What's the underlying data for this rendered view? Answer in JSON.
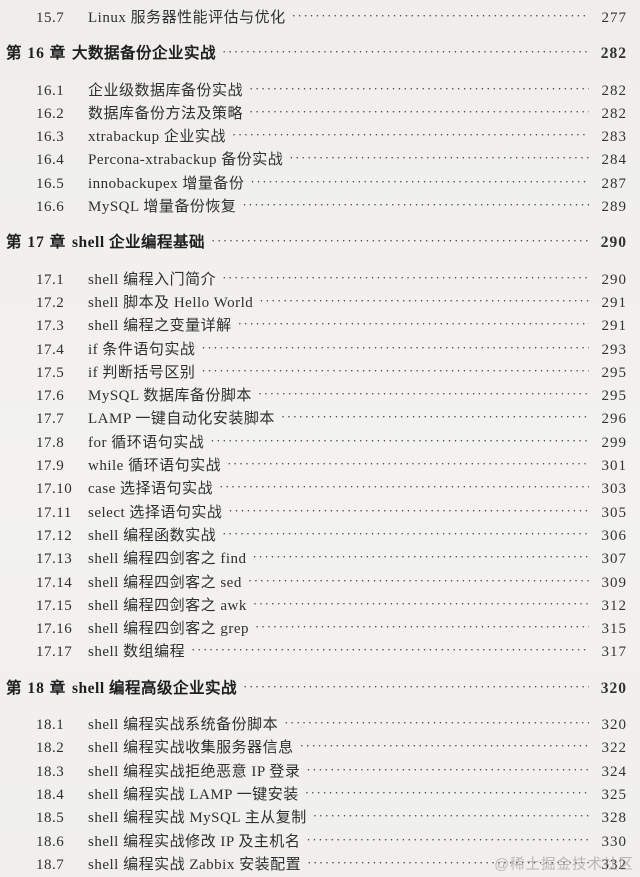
{
  "page": {
    "watermark": "@稀土掘金技术社区"
  },
  "toc": {
    "entries": [
      {
        "type": "section",
        "num": "15.7",
        "title": "Linux 服务器性能评估与优化",
        "page": "277"
      },
      {
        "type": "chapter",
        "num": "第 16 章",
        "title": "大数据备份企业实战",
        "page": "282"
      },
      {
        "type": "section",
        "num": "16.1",
        "title": "企业级数据库备份实战",
        "page": "282"
      },
      {
        "type": "section",
        "num": "16.2",
        "title": "数据库备份方法及策略",
        "page": "282"
      },
      {
        "type": "section",
        "num": "16.3",
        "title": "xtrabackup 企业实战",
        "page": "283"
      },
      {
        "type": "section",
        "num": "16.4",
        "title": "Percona-xtrabackup 备份实战",
        "page": "284"
      },
      {
        "type": "section",
        "num": "16.5",
        "title": "innobackupex 增量备份",
        "page": "287"
      },
      {
        "type": "section",
        "num": "16.6",
        "title": "MySQL 增量备份恢复",
        "page": "289"
      },
      {
        "type": "chapter",
        "num": "第 17 章",
        "title": "shell 企业编程基础",
        "page": "290"
      },
      {
        "type": "section",
        "num": "17.1",
        "title": "shell 编程入门简介",
        "page": "290"
      },
      {
        "type": "section",
        "num": "17.2",
        "title": "shell 脚本及 Hello World",
        "page": "291"
      },
      {
        "type": "section",
        "num": "17.3",
        "title": "shell 编程之变量详解",
        "page": "291"
      },
      {
        "type": "section",
        "num": "17.4",
        "title": "if 条件语句实战",
        "page": "293"
      },
      {
        "type": "section",
        "num": "17.5",
        "title": "if 判断括号区别",
        "page": "295"
      },
      {
        "type": "section",
        "num": "17.6",
        "title": "MySQL 数据库备份脚本",
        "page": "295"
      },
      {
        "type": "section",
        "num": "17.7",
        "title": "LAMP 一键自动化安装脚本",
        "page": "296"
      },
      {
        "type": "section",
        "num": "17.8",
        "title": "for 循环语句实战",
        "page": "299"
      },
      {
        "type": "section",
        "num": "17.9",
        "title": "while 循环语句实战",
        "page": "301"
      },
      {
        "type": "section",
        "num": "17.10",
        "title": "case 选择语句实战",
        "page": "303"
      },
      {
        "type": "section",
        "num": "17.11",
        "title": "select 选择语句实战",
        "page": "305"
      },
      {
        "type": "section",
        "num": "17.12",
        "title": "shell 编程函数实战",
        "page": "306"
      },
      {
        "type": "section",
        "num": "17.13",
        "title": "shell 编程四剑客之 find",
        "page": "307"
      },
      {
        "type": "section",
        "num": "17.14",
        "title": "shell 编程四剑客之 sed",
        "page": "309"
      },
      {
        "type": "section",
        "num": "17.15",
        "title": "shell 编程四剑客之 awk",
        "page": "312"
      },
      {
        "type": "section",
        "num": "17.16",
        "title": "shell 编程四剑客之 grep",
        "page": "315"
      },
      {
        "type": "section",
        "num": "17.17",
        "title": "shell 数组编程",
        "page": "317"
      },
      {
        "type": "chapter",
        "num": "第 18 章",
        "title": "shell 编程高级企业实战",
        "page": "320"
      },
      {
        "type": "section",
        "num": "18.1",
        "title": "shell 编程实战系统备份脚本",
        "page": "320"
      },
      {
        "type": "section",
        "num": "18.2",
        "title": "shell 编程实战收集服务器信息",
        "page": "322"
      },
      {
        "type": "section",
        "num": "18.3",
        "title": "shell 编程实战拒绝恶意 IP 登录",
        "page": "324"
      },
      {
        "type": "section",
        "num": "18.4",
        "title": "shell 编程实战 LAMP 一键安装",
        "page": "325"
      },
      {
        "type": "section",
        "num": "18.5",
        "title": "shell 编程实战 MySQL 主从复制",
        "page": "328"
      },
      {
        "type": "section",
        "num": "18.6",
        "title": "shell 编程实战修改 IP 及主机名",
        "page": "330"
      },
      {
        "type": "section",
        "num": "18.7",
        "title": "shell 编程实战 Zabbix 安装配置",
        "page": "332"
      }
    ]
  }
}
